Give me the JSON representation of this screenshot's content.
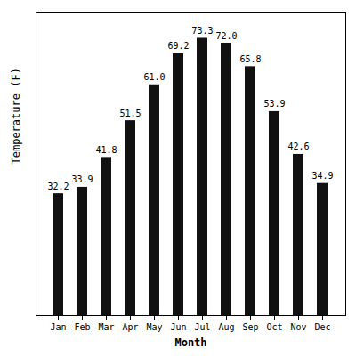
{
  "chart_data": {
    "type": "bar",
    "categories": [
      "Jan",
      "Feb",
      "Mar",
      "Apr",
      "May",
      "Jun",
      "Jul",
      "Aug",
      "Sep",
      "Oct",
      "Nov",
      "Dec"
    ],
    "values": [
      32.2,
      33.9,
      41.8,
      51.5,
      61.0,
      69.2,
      73.3,
      72.0,
      65.8,
      53.9,
      42.6,
      34.9
    ],
    "value_labels": [
      "32.2",
      "33.9",
      "41.8",
      "51.5",
      "61.0",
      "69.2",
      "73.3",
      "72.0",
      "65.8",
      "53.9",
      "42.6",
      "34.9"
    ],
    "color": "#111111",
    "xlabel": "Month",
    "ylabel": "Temperature (F)",
    "ylim": [
      0,
      80
    ],
    "data_labels": true,
    "tick_labels": "x",
    "grid": false
  }
}
